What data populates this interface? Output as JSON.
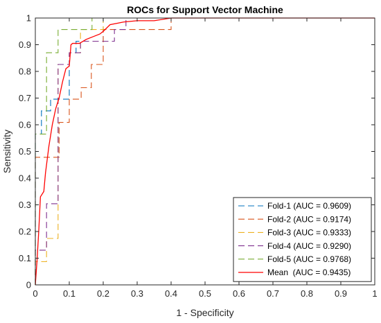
{
  "chart_data": {
    "type": "line",
    "title": "ROCs for Support Vector Machine",
    "xlabel": "1 - Specificity",
    "ylabel": "Sensitivity",
    "xlim": [
      0,
      1
    ],
    "ylim": [
      0,
      1
    ],
    "x_ticks": [
      "0",
      "0.1",
      "0.2",
      "0.3",
      "0.4",
      "0.5",
      "0.6",
      "0.7",
      "0.8",
      "0.9",
      "1"
    ],
    "y_ticks": [
      "0",
      "0.1",
      "0.2",
      "0.3",
      "0.4",
      "0.5",
      "0.6",
      "0.7",
      "0.8",
      "0.9",
      "1"
    ],
    "grid": false,
    "legend_position": "bottom-right",
    "series": [
      {
        "name": "Fold-1 (AUC = 0.9609)",
        "color": "#0072BD",
        "style": "dashed",
        "points": [
          [
            0,
            0
          ],
          [
            0,
            0.565
          ],
          [
            0.018,
            0.565
          ],
          [
            0.018,
            0.652
          ],
          [
            0.045,
            0.652
          ],
          [
            0.045,
            0.696
          ],
          [
            0.1,
            0.696
          ],
          [
            0.1,
            0.87
          ],
          [
            0.12,
            0.87
          ],
          [
            0.12,
            0.913
          ],
          [
            0.2,
            0.913
          ],
          [
            0.2,
            1.0
          ],
          [
            1.0,
            1.0
          ]
        ]
      },
      {
        "name": "Fold-2 (AUC = 0.9174)",
        "color": "#D95319",
        "style": "dashed",
        "points": [
          [
            0,
            0
          ],
          [
            0,
            0.478
          ],
          [
            0.07,
            0.478
          ],
          [
            0.07,
            0.609
          ],
          [
            0.1,
            0.609
          ],
          [
            0.1,
            0.696
          ],
          [
            0.135,
            0.696
          ],
          [
            0.135,
            0.739
          ],
          [
            0.165,
            0.739
          ],
          [
            0.165,
            0.826
          ],
          [
            0.2,
            0.826
          ],
          [
            0.2,
            0.957
          ],
          [
            0.4,
            0.957
          ],
          [
            0.4,
            1.0
          ],
          [
            1.0,
            1.0
          ]
        ]
      },
      {
        "name": "Fold-3 (AUC = 0.9333)",
        "color": "#EDB120",
        "style": "dashed",
        "points": [
          [
            0,
            0
          ],
          [
            0,
            0.087
          ],
          [
            0.033,
            0.087
          ],
          [
            0.033,
            0.174
          ],
          [
            0.067,
            0.174
          ],
          [
            0.067,
            0.826
          ],
          [
            0.1,
            0.826
          ],
          [
            0.1,
            0.87
          ],
          [
            0.133,
            0.87
          ],
          [
            0.133,
            0.957
          ],
          [
            0.2,
            0.957
          ],
          [
            0.2,
            1.0
          ],
          [
            1.0,
            1.0
          ]
        ]
      },
      {
        "name": "Fold-4 (AUC = 0.9290)",
        "color": "#7E2F8E",
        "style": "dashed",
        "points": [
          [
            0,
            0
          ],
          [
            0,
            0.13
          ],
          [
            0.033,
            0.13
          ],
          [
            0.033,
            0.304
          ],
          [
            0.067,
            0.304
          ],
          [
            0.067,
            0.826
          ],
          [
            0.1,
            0.826
          ],
          [
            0.1,
            0.87
          ],
          [
            0.133,
            0.87
          ],
          [
            0.133,
            0.913
          ],
          [
            0.233,
            0.913
          ],
          [
            0.233,
            0.957
          ],
          [
            0.267,
            0.957
          ],
          [
            0.267,
            1.0
          ],
          [
            1.0,
            1.0
          ]
        ]
      },
      {
        "name": "Fold-5 (AUC = 0.9768)",
        "color": "#77AC30",
        "style": "dashed",
        "points": [
          [
            0,
            0
          ],
          [
            0,
            0.565
          ],
          [
            0.033,
            0.565
          ],
          [
            0.033,
            0.87
          ],
          [
            0.067,
            0.87
          ],
          [
            0.067,
            0.957
          ],
          [
            0.167,
            0.957
          ],
          [
            0.167,
            1.0
          ],
          [
            1.0,
            1.0
          ]
        ]
      },
      {
        "name": "Mean  (AUC = 0.9435)",
        "color": "#FF0000",
        "style": "solid",
        "points": [
          [
            0,
            0
          ],
          [
            0.005,
            0.09
          ],
          [
            0.01,
            0.2
          ],
          [
            0.015,
            0.33
          ],
          [
            0.025,
            0.35
          ],
          [
            0.03,
            0.42
          ],
          [
            0.04,
            0.52
          ],
          [
            0.05,
            0.6
          ],
          [
            0.06,
            0.66
          ],
          [
            0.07,
            0.7
          ],
          [
            0.08,
            0.76
          ],
          [
            0.09,
            0.81
          ],
          [
            0.1,
            0.82
          ],
          [
            0.105,
            0.9
          ],
          [
            0.11,
            0.905
          ],
          [
            0.13,
            0.905
          ],
          [
            0.15,
            0.92
          ],
          [
            0.17,
            0.93
          ],
          [
            0.19,
            0.94
          ],
          [
            0.2,
            0.95
          ],
          [
            0.22,
            0.975
          ],
          [
            0.26,
            0.985
          ],
          [
            0.3,
            0.99
          ],
          [
            0.35,
            0.99
          ],
          [
            0.4,
            1.0
          ],
          [
            1.0,
            1.0
          ]
        ]
      }
    ]
  }
}
